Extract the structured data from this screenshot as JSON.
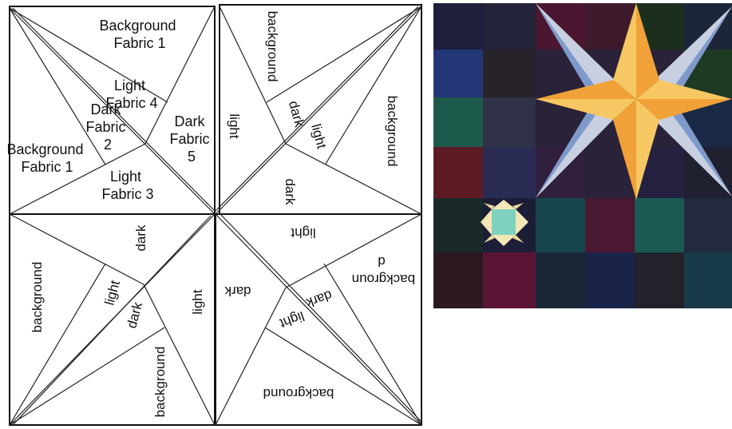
{
  "pattern": {
    "top_left": {
      "background_fabric_1_top": [
        "Background",
        "Fabric 1"
      ],
      "light_fabric_4": [
        "Light",
        "Fabric 4"
      ],
      "dark_fabric_2": [
        "Dark",
        "Fabric",
        "2"
      ],
      "dark_fabric_5": [
        "Dark",
        "Fabric",
        "5"
      ],
      "background_fabric_1_left": [
        "Background",
        "Fabric 1"
      ],
      "light_fabric_3": [
        "Light",
        "Fabric 3"
      ]
    },
    "top_right": {
      "background_upper": "background",
      "dark_inner": "dark",
      "light_inner": "light",
      "background_right": "background",
      "light_left": "light",
      "dark_lower": "dark"
    },
    "bottom_left": {
      "dark_upper": "dark",
      "background_left": "background",
      "light_inner": "light",
      "dark_inner": "dark",
      "light_right": "light",
      "background_lower": "background"
    },
    "bottom_right": {
      "light_upper": "light",
      "background_right": [
        "backgroun",
        "d"
      ],
      "dark_left": "dark",
      "dark_inner": "dark",
      "light_inner": "light",
      "background_lower": "background"
    }
  },
  "colors": {
    "quilt_background": "#2a2238",
    "star_light": "#f6c762",
    "star_dark": "#f0a238",
    "star_outer_light": "#c7cfe0",
    "star_outer_blue": "#7e9acb",
    "small_star_center": "#7fd1c0",
    "small_star_points": "#f5e6b6"
  }
}
